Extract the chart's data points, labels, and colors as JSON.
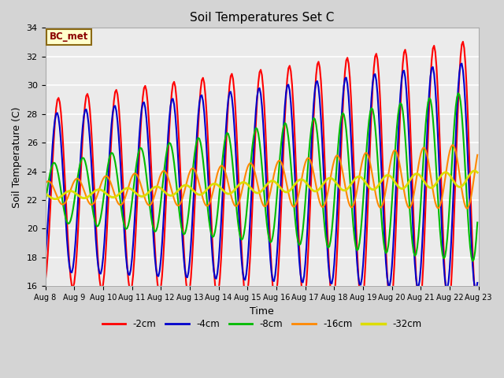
{
  "title": "Soil Temperatures Set C",
  "xlabel": "Time",
  "ylabel": "Soil Temperature (C)",
  "ylim": [
    16,
    34
  ],
  "xlim": [
    0,
    360
  ],
  "fig_bg": "#d4d4d4",
  "plot_bg": "#ebebeb",
  "legend_label": "BC_met",
  "series_labels": [
    "-2cm",
    "-4cm",
    "-8cm",
    "-16cm",
    "-32cm"
  ],
  "series_colors": [
    "#ff0000",
    "#0000cc",
    "#00bb00",
    "#ff8800",
    "#dddd00"
  ],
  "series_linewidths": [
    1.5,
    1.5,
    1.5,
    1.5,
    2.0
  ],
  "xtick_labels": [
    "Aug 8",
    "Aug 9",
    "Aug 10",
    "Aug 11",
    "Aug 12",
    "Aug 13",
    "Aug 14",
    "Aug 15",
    "Aug 16",
    "Aug 17",
    "Aug 18",
    "Aug 19",
    "Aug 20",
    "Aug 21",
    "Aug 22",
    "Aug 23"
  ],
  "xtick_positions": [
    0,
    24,
    48,
    72,
    96,
    120,
    144,
    168,
    192,
    216,
    240,
    264,
    288,
    312,
    336,
    360
  ],
  "ytick_values": [
    16,
    18,
    20,
    22,
    24,
    26,
    28,
    30,
    32,
    34
  ],
  "grid_color": "#ffffff",
  "bc_met_color": "#8B0000",
  "bc_met_bg": "#ffffcc",
  "bc_met_edge": "#8B6914"
}
